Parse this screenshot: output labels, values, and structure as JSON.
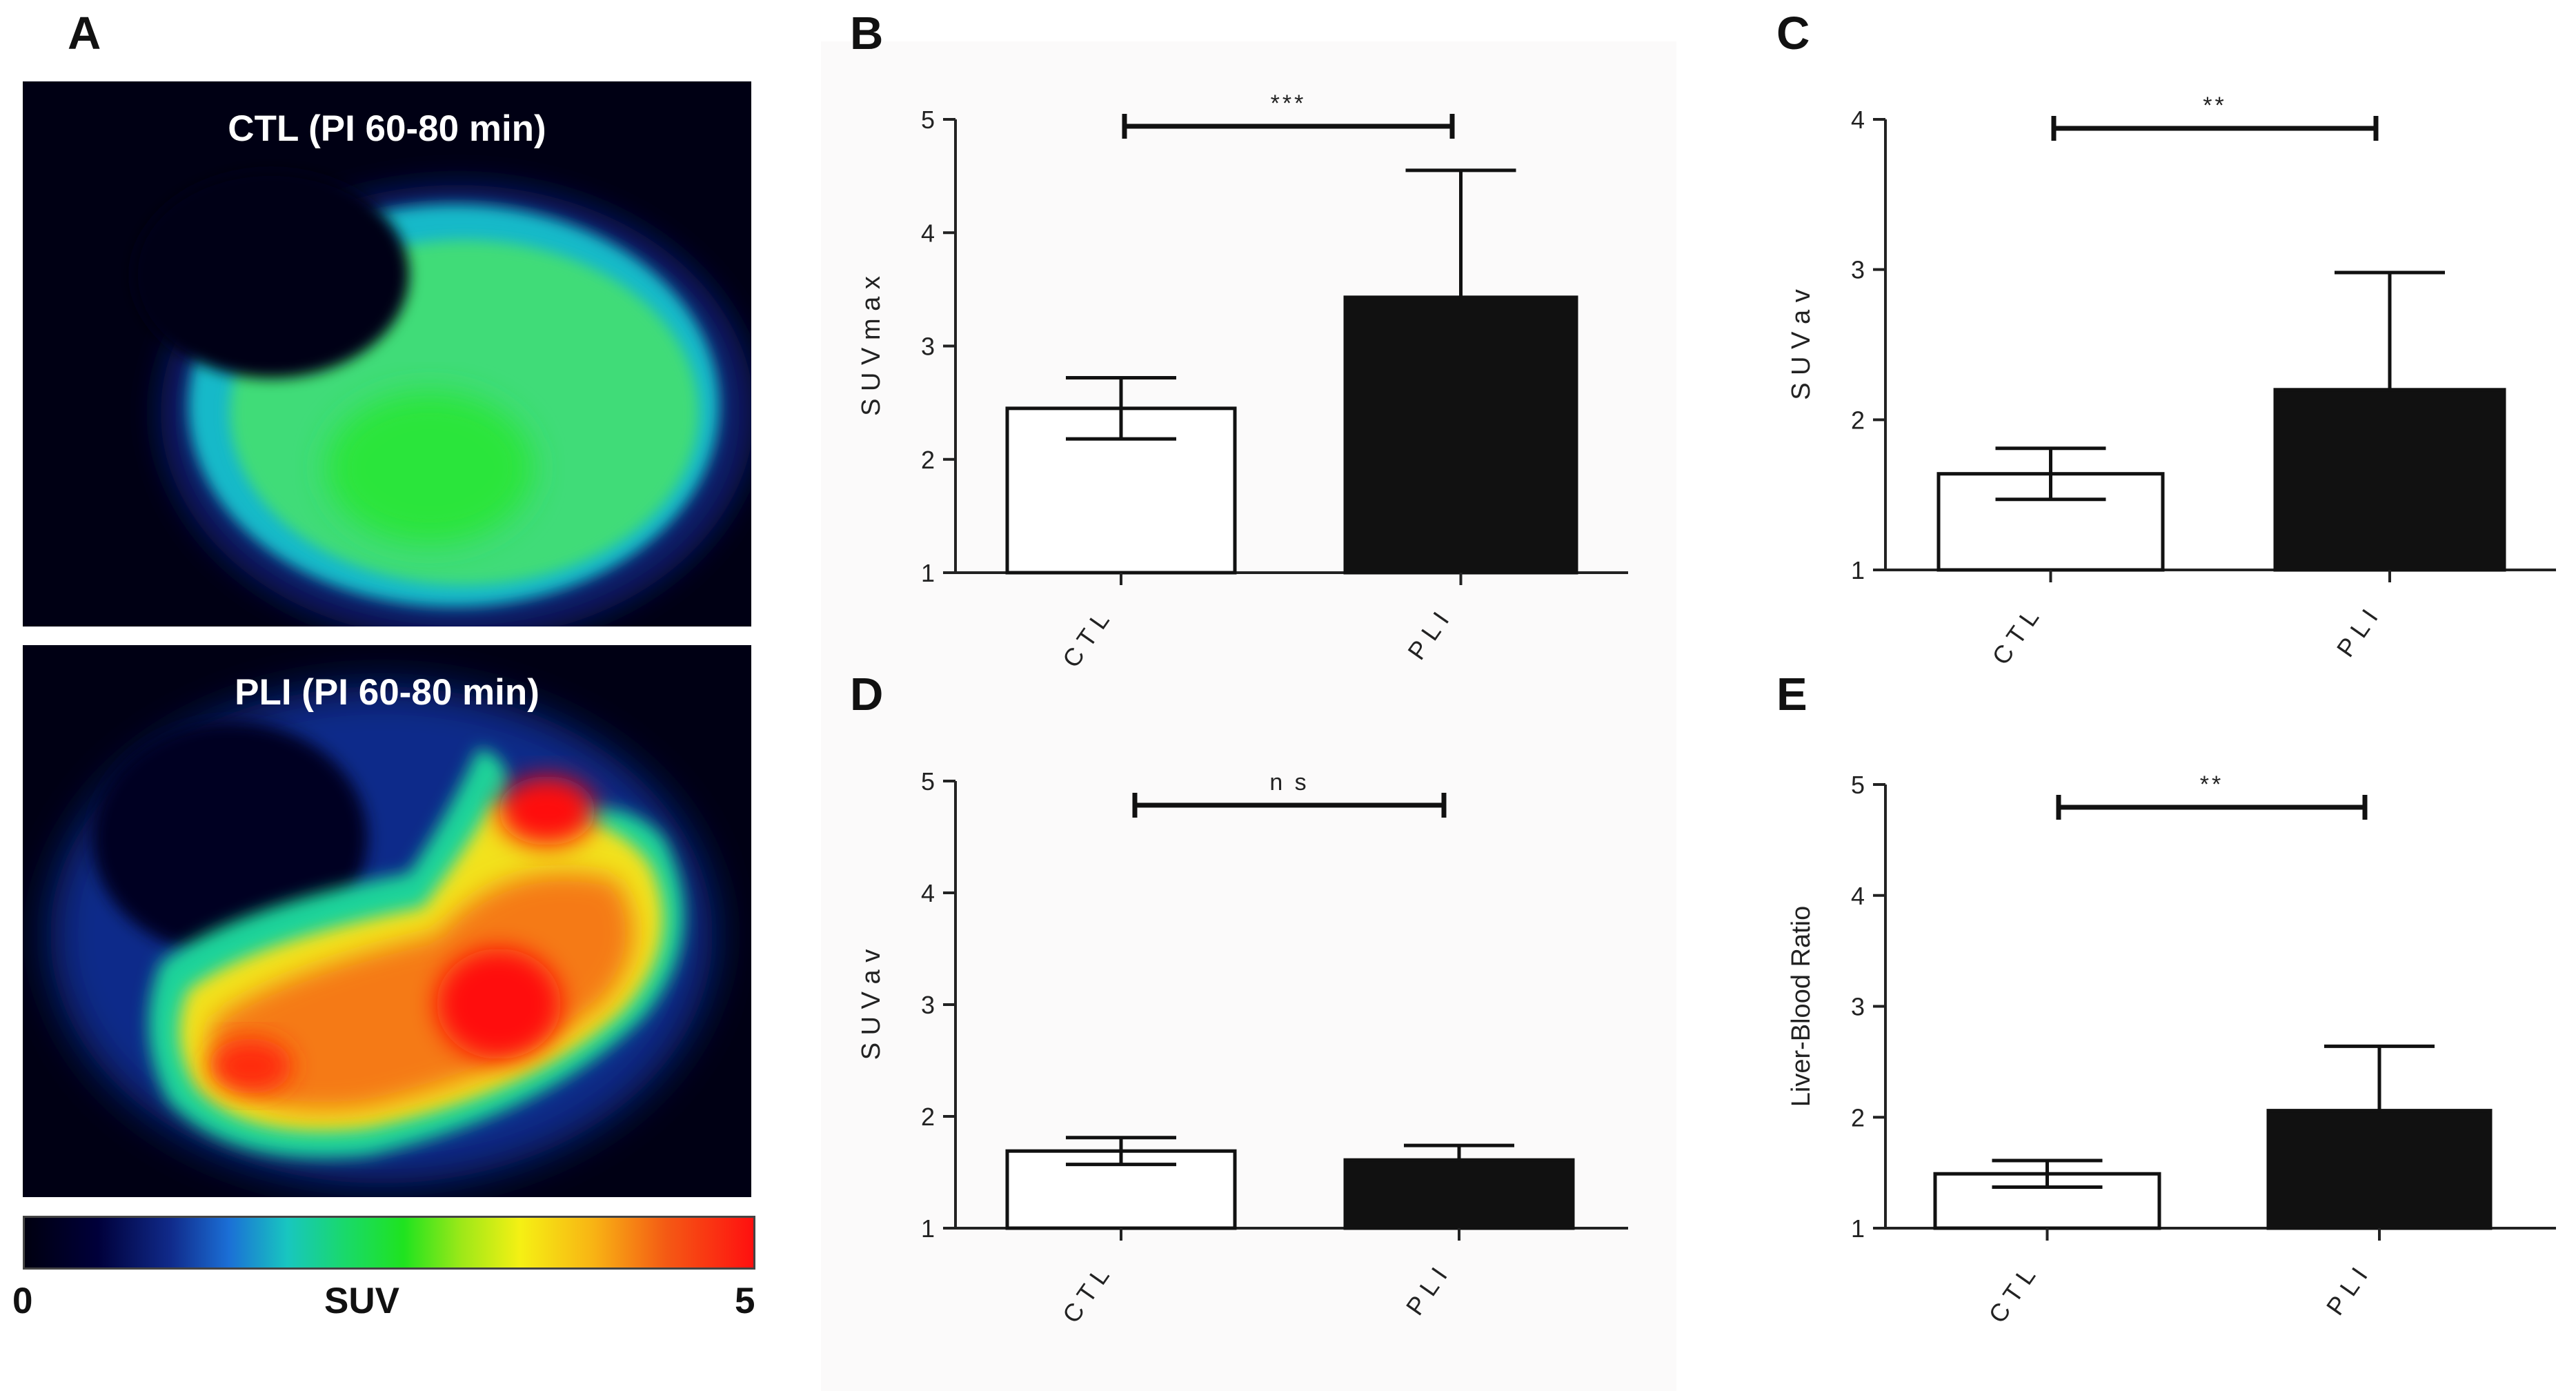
{
  "panel_a": {
    "letter": "A",
    "top_label": "CTL (PI 60-80 min)",
    "bottom_label": "PLI (PI 60-80 min)",
    "colorbar": {
      "min_label": "0",
      "title": "SUV",
      "max_label": "5"
    }
  },
  "chart_data": [
    {
      "letter": "B",
      "type": "bar",
      "categories": [
        "CTL",
        "PLI"
      ],
      "values": [
        2.45,
        3.43
      ],
      "errors": [
        0.27,
        1.12
      ],
      "ylabel": "S U V m a x",
      "ylim": [
        1,
        5
      ],
      "yticks": [
        "1",
        "2",
        "3",
        "4",
        "5"
      ],
      "significance": "***",
      "bar_colors": [
        "#ffffff",
        "#111111"
      ]
    },
    {
      "letter": "C",
      "type": "bar",
      "categories": [
        "CTL",
        "PLI"
      ],
      "values": [
        1.64,
        2.2
      ],
      "errors": [
        0.17,
        0.78
      ],
      "ylabel": "S U V a v",
      "ylim": [
        1,
        4
      ],
      "yticks": [
        "1",
        "2",
        "3",
        "4"
      ],
      "significance": "**",
      "bar_colors": [
        "#ffffff",
        "#111111"
      ]
    },
    {
      "letter": "D",
      "type": "bar",
      "categories": [
        "CTL",
        "PLI"
      ],
      "values": [
        1.69,
        1.61
      ],
      "errors": [
        0.12,
        0.13
      ],
      "ylabel": "S U V a v",
      "ylim": [
        1,
        5
      ],
      "yticks": [
        "1",
        "2",
        "3",
        "4",
        "5"
      ],
      "significance": "n s",
      "bar_colors": [
        "#ffffff",
        "#111111"
      ]
    },
    {
      "letter": "E",
      "type": "bar",
      "categories": [
        "CTL",
        "PLI"
      ],
      "values": [
        1.49,
        2.06
      ],
      "errors": [
        0.12,
        0.58
      ],
      "ylabel": "Liver-Blood Ratio",
      "ylim": [
        1,
        5
      ],
      "yticks": [
        "1",
        "2",
        "3",
        "4",
        "5"
      ],
      "significance": "**",
      "bar_colors": [
        "#ffffff",
        "#111111"
      ]
    }
  ]
}
